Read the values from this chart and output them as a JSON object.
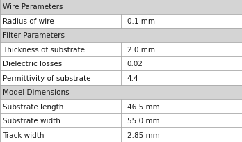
{
  "sections": [
    {
      "header": "Wire Parameters",
      "rows": [
        [
          "Radius of wire",
          "0.1 mm"
        ]
      ]
    },
    {
      "header": "Filter Parameters",
      "rows": [
        [
          "Thickness of substrate",
          "2.0 mm"
        ],
        [
          "Dielectric losses",
          "0.02"
        ],
        [
          "Permittivity of substrate",
          "4.4"
        ]
      ]
    },
    {
      "header": "Model Dimensions",
      "rows": [
        [
          "Substrate length",
          "46.5 mm"
        ],
        [
          "Substrate width",
          "55.0 mm"
        ],
        [
          "Track width",
          "2.85 mm"
        ]
      ]
    }
  ],
  "col_split": 0.5,
  "header_bg": "#d4d4d4",
  "row_bg": "#ffffff",
  "border_color": "#a8a8a8",
  "text_color": "#1a1a1a",
  "header_fontsize": 7.5,
  "row_fontsize": 7.5,
  "fig_bg": "#ffffff",
  "fig_width": 3.48,
  "fig_height": 2.05,
  "dpi": 100
}
